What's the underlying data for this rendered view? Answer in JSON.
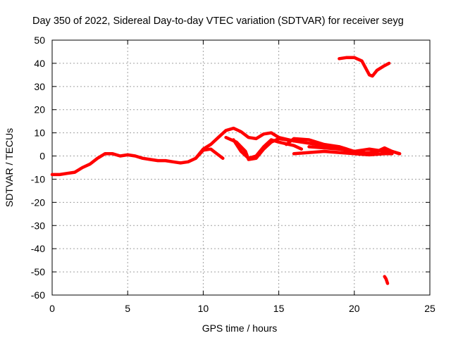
{
  "chart_data": {
    "type": "line",
    "title": "Day 350 of 2022, Sidereal Day-to-day VTEC variation (SDTVAR) for receiver seyg",
    "xlabel": "GPS time / hours",
    "ylabel": "SDTVAR / TECUs",
    "xlim": [
      0,
      25
    ],
    "ylim": [
      -60,
      50
    ],
    "xticks": [
      0,
      5,
      10,
      15,
      20,
      25
    ],
    "yticks": [
      -60,
      -50,
      -40,
      -30,
      -20,
      -10,
      0,
      10,
      20,
      30,
      40,
      50
    ],
    "grid": true,
    "color": "#ff0000",
    "series": [
      {
        "name": "main-trace",
        "points": [
          [
            0,
            -8
          ],
          [
            0.5,
            -8
          ],
          [
            1,
            -7.5
          ],
          [
            1.5,
            -7
          ],
          [
            2,
            -5
          ],
          [
            2.5,
            -3.5
          ],
          [
            3,
            -1
          ],
          [
            3.5,
            1
          ],
          [
            4,
            1
          ],
          [
            4.5,
            0
          ],
          [
            5,
            0.5
          ],
          [
            5.5,
            0
          ],
          [
            6,
            -1
          ],
          [
            6.5,
            -1.5
          ],
          [
            7,
            -2
          ],
          [
            7.5,
            -2
          ],
          [
            8,
            -2.5
          ],
          [
            8.5,
            -3
          ],
          [
            9,
            -2.5
          ],
          [
            9.5,
            -1
          ],
          [
            10,
            3
          ],
          [
            10.5,
            5
          ],
          [
            11,
            8
          ],
          [
            11.5,
            11
          ],
          [
            12,
            12
          ],
          [
            12.5,
            10.5
          ],
          [
            13,
            8
          ],
          [
            13.5,
            7.5
          ],
          [
            14,
            9.5
          ],
          [
            14.5,
            10
          ],
          [
            15,
            8
          ],
          [
            16,
            6.5
          ],
          [
            17,
            5.5
          ],
          [
            18,
            4.5
          ],
          [
            19,
            4
          ],
          [
            20,
            2
          ],
          [
            20.5,
            2.5
          ],
          [
            21,
            3
          ],
          [
            21.5,
            2.5
          ],
          [
            22,
            2
          ],
          [
            22.5,
            2
          ],
          [
            23,
            1
          ]
        ]
      },
      {
        "name": "mid-trace-2",
        "points": [
          [
            9.5,
            -1
          ],
          [
            10,
            2.5
          ],
          [
            10.5,
            3
          ],
          [
            11,
            0.5
          ],
          [
            11.3,
            -1
          ]
        ]
      },
      {
        "name": "mid-trace-3",
        "points": [
          [
            11.5,
            8
          ],
          [
            12.2,
            6
          ],
          [
            12.8,
            2
          ],
          [
            13,
            -1.5
          ],
          [
            13.5,
            -1
          ],
          [
            14,
            3
          ],
          [
            14.5,
            6
          ],
          [
            15,
            7.5
          ],
          [
            15.5,
            7
          ],
          [
            16,
            6.5
          ]
        ]
      },
      {
        "name": "mid-trace-4",
        "points": [
          [
            12,
            7
          ],
          [
            12.5,
            2
          ],
          [
            13,
            -1
          ],
          [
            13.5,
            0
          ],
          [
            14,
            4
          ],
          [
            14.5,
            7
          ],
          [
            15,
            6
          ],
          [
            16,
            4.5
          ],
          [
            16.5,
            3
          ]
        ]
      },
      {
        "name": "mid-trace-5",
        "points": [
          [
            15.5,
            5
          ],
          [
            16,
            7.5
          ],
          [
            17,
            7
          ],
          [
            18,
            5
          ],
          [
            19,
            4
          ],
          [
            19.5,
            3
          ]
        ]
      },
      {
        "name": "low-trace",
        "points": [
          [
            16,
            1
          ],
          [
            17,
            1.5
          ],
          [
            18,
            2
          ],
          [
            19,
            1.5
          ],
          [
            20,
            1
          ],
          [
            21,
            0.5
          ],
          [
            22,
            1
          ],
          [
            22.5,
            1
          ]
        ]
      },
      {
        "name": "low-trace-2",
        "points": [
          [
            17,
            4
          ],
          [
            18,
            3.5
          ],
          [
            19,
            3
          ],
          [
            20,
            2
          ],
          [
            21,
            1
          ],
          [
            22,
            3
          ],
          [
            22.5,
            2
          ]
        ]
      },
      {
        "name": "late-trace",
        "points": [
          [
            20,
            1.5
          ],
          [
            20.5,
            1
          ],
          [
            21,
            1.5
          ],
          [
            21.5,
            2
          ],
          [
            22,
            3.5
          ],
          [
            22.5,
            2
          ],
          [
            23,
            1
          ]
        ]
      },
      {
        "name": "upper-trace",
        "points": [
          [
            19,
            42
          ],
          [
            19.5,
            42.5
          ],
          [
            20,
            42.5
          ],
          [
            20.5,
            41
          ],
          [
            21,
            35
          ],
          [
            21.2,
            34.5
          ],
          [
            21.5,
            37
          ],
          [
            22,
            39
          ],
          [
            22.3,
            40
          ]
        ]
      },
      {
        "name": "outlier-trace",
        "points": [
          [
            22,
            -52
          ],
          [
            22.1,
            -53
          ],
          [
            22.2,
            -55
          ]
        ]
      }
    ]
  }
}
